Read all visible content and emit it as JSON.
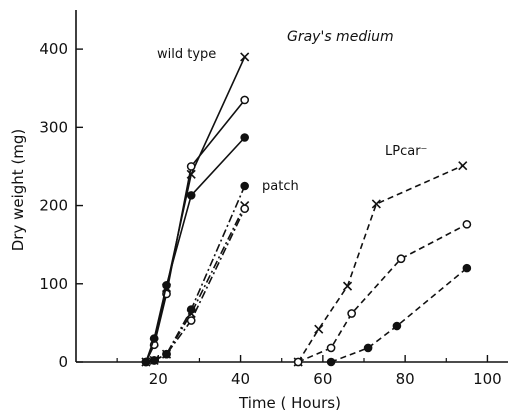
{
  "chart_data": {
    "type": "line",
    "title": "Gray's medium",
    "xlabel": "Time ( Hours)",
    "ylabel": "Dry weight (mg)",
    "xlim": [
      0,
      105
    ],
    "ylim": [
      0,
      450
    ],
    "x_ticks": [
      20,
      40,
      60,
      80,
      100
    ],
    "y_ticks": [
      0,
      100,
      200,
      300,
      400
    ],
    "annotations": [
      "wild type",
      "patch",
      "LPcar⁻"
    ],
    "groups": [
      {
        "name": "wild type",
        "line_style": "solid",
        "series": [
          {
            "marker": "x",
            "points": [
              [
                17,
                0
              ],
              [
                19,
                25
              ],
              [
                22,
                95
              ],
              [
                28,
                240
              ],
              [
                41,
                390
              ]
            ]
          },
          {
            "marker": "circle-open",
            "points": [
              [
                17,
                0
              ],
              [
                19,
                22
              ],
              [
                22,
                87
              ],
              [
                28,
                250
              ],
              [
                41,
                335
              ]
            ]
          },
          {
            "marker": "circle-filled",
            "points": [
              [
                17,
                0
              ],
              [
                19,
                30
              ],
              [
                22,
                98
              ],
              [
                28,
                213
              ],
              [
                41,
                287
              ]
            ]
          }
        ]
      },
      {
        "name": "patch",
        "line_style": "dash-dot",
        "series": [
          {
            "marker": "x",
            "points": [
              [
                19,
                2
              ],
              [
                22,
                10
              ],
              [
                28,
                62
              ],
              [
                41,
                200
              ]
            ]
          },
          {
            "marker": "circle-open",
            "points": [
              [
                19,
                2
              ],
              [
                22,
                10
              ],
              [
                28,
                53
              ],
              [
                41,
                196
              ]
            ]
          },
          {
            "marker": "circle-filled",
            "points": [
              [
                19,
                2
              ],
              [
                22,
                10
              ],
              [
                28,
                67
              ],
              [
                41,
                225
              ]
            ]
          }
        ]
      },
      {
        "name": "LPcar⁻",
        "line_style": "dashed",
        "series": [
          {
            "marker": "x",
            "points": [
              [
                54,
                0
              ],
              [
                59,
                42
              ],
              [
                66,
                97
              ],
              [
                73,
                202
              ],
              [
                94,
                251
              ]
            ]
          },
          {
            "marker": "circle-open",
            "points": [
              [
                54,
                0
              ],
              [
                62,
                18
              ],
              [
                67,
                62
              ],
              [
                79,
                132
              ],
              [
                95,
                176
              ]
            ]
          },
          {
            "marker": "circle-filled",
            "points": [
              [
                62,
                0
              ],
              [
                71,
                18
              ],
              [
                78,
                46
              ],
              [
                95,
                120
              ]
            ]
          }
        ]
      }
    ]
  }
}
